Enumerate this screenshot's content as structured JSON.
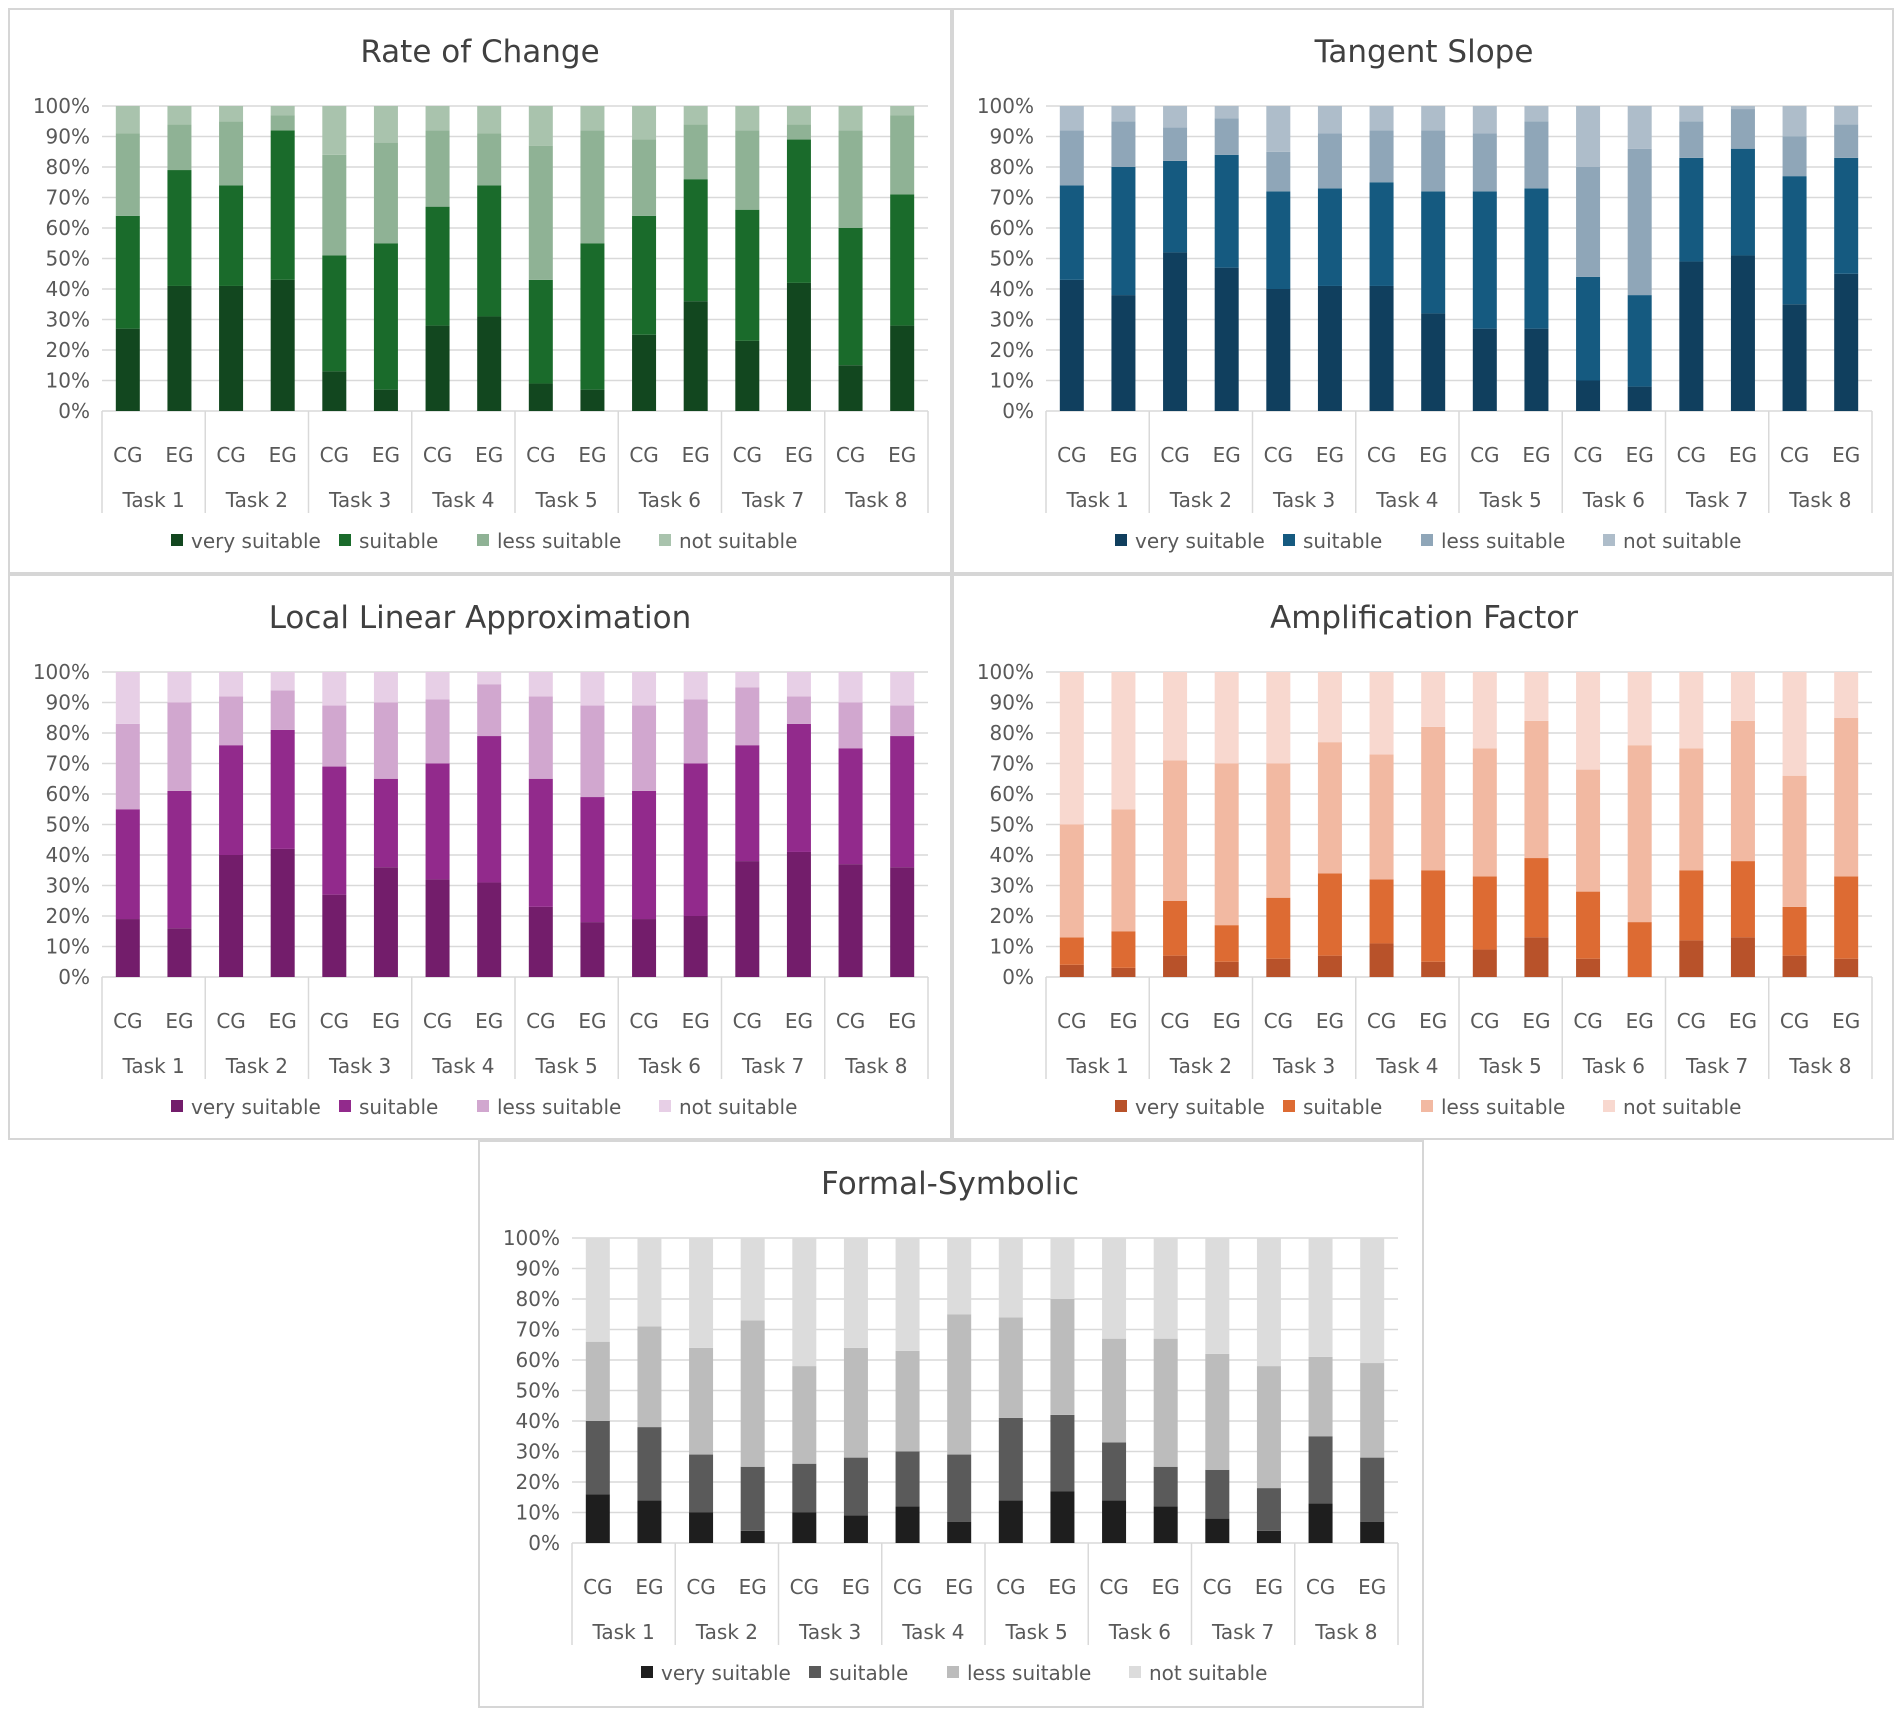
{
  "common": {
    "groups": [
      "CG",
      "EG"
    ],
    "tasks": [
      "Task 1",
      "Task 2",
      "Task 3",
      "Task 4",
      "Task 5",
      "Task 6",
      "Task 7",
      "Task 8"
    ],
    "legend": [
      "very suitable",
      "suitable",
      "less suitable",
      "not suitable"
    ],
    "y_ticks": [
      "0%",
      "10%",
      "20%",
      "30%",
      "40%",
      "50%",
      "60%",
      "70%",
      "80%",
      "90%",
      "100%"
    ]
  },
  "chart_data": [
    {
      "type": "bar",
      "stacked": true,
      "title": "Rate of Change",
      "colors": [
        "#12471f",
        "#1a6b2b",
        "#8fb295",
        "#a9c3ad"
      ],
      "categories": [
        "Task 1 CG",
        "Task 1 EG",
        "Task 2 CG",
        "Task 2 EG",
        "Task 3 CG",
        "Task 3 EG",
        "Task 4 CG",
        "Task 4 EG",
        "Task 5 CG",
        "Task 5 EG",
        "Task 6 CG",
        "Task 6 EG",
        "Task 7 CG",
        "Task 7 EG",
        "Task 8 CG",
        "Task 8 EG"
      ],
      "series": [
        {
          "name": "very suitable",
          "values": [
            27,
            41,
            41,
            43,
            13,
            7,
            28,
            31,
            9,
            7,
            25,
            36,
            23,
            42,
            15,
            28
          ]
        },
        {
          "name": "suitable",
          "values": [
            37,
            38,
            33,
            49,
            38,
            48,
            39,
            43,
            34,
            48,
            39,
            40,
            43,
            47,
            45,
            43
          ]
        },
        {
          "name": "less suitable",
          "values": [
            27,
            15,
            21,
            5,
            33,
            33,
            25,
            17,
            44,
            37,
            25,
            18,
            26,
            5,
            32,
            26
          ]
        },
        {
          "name": "not suitable",
          "values": [
            9,
            6,
            5,
            3,
            16,
            12,
            8,
            9,
            13,
            8,
            11,
            6,
            8,
            6,
            8,
            3
          ]
        }
      ],
      "ylim": [
        0,
        100
      ],
      "legend_position": "bottom"
    },
    {
      "type": "bar",
      "stacked": true,
      "title": "Tangent Slope",
      "colors": [
        "#103f5e",
        "#155a80",
        "#8fa6b8",
        "#aebdca"
      ],
      "categories": [
        "Task 1 CG",
        "Task 1 EG",
        "Task 2 CG",
        "Task 2 EG",
        "Task 3 CG",
        "Task 3 EG",
        "Task 4 CG",
        "Task 4 EG",
        "Task 5 CG",
        "Task 5 EG",
        "Task 6 CG",
        "Task 6 EG",
        "Task 7 CG",
        "Task 7 EG",
        "Task 8 CG",
        "Task 8 EG"
      ],
      "series": [
        {
          "name": "very suitable",
          "values": [
            43,
            38,
            52,
            47,
            40,
            41,
            41,
            32,
            27,
            27,
            10,
            8,
            49,
            51,
            35,
            45
          ]
        },
        {
          "name": "suitable",
          "values": [
            31,
            42,
            30,
            37,
            32,
            32,
            34,
            40,
            45,
            46,
            34,
            30,
            34,
            35,
            42,
            38
          ]
        },
        {
          "name": "less suitable",
          "values": [
            18,
            15,
            11,
            12,
            13,
            18,
            17,
            20,
            19,
            22,
            36,
            48,
            12,
            13,
            13,
            11
          ]
        },
        {
          "name": "not suitable",
          "values": [
            8,
            5,
            7,
            4,
            15,
            9,
            8,
            8,
            9,
            5,
            20,
            14,
            5,
            1,
            10,
            6
          ]
        }
      ],
      "ylim": [
        0,
        100
      ],
      "legend_position": "bottom"
    },
    {
      "type": "bar",
      "stacked": true,
      "title": "Local Linear Approximation",
      "colors": [
        "#731d6b",
        "#922a8c",
        "#d1a7cf",
        "#e7cfe6"
      ],
      "categories": [
        "Task 1 CG",
        "Task 1 EG",
        "Task 2 CG",
        "Task 2 EG",
        "Task 3 CG",
        "Task 3 EG",
        "Task 4 CG",
        "Task 4 EG",
        "Task 5 CG",
        "Task 5 EG",
        "Task 6 CG",
        "Task 6 EG",
        "Task 7 CG",
        "Task 7 EG",
        "Task 8 CG",
        "Task 8 EG"
      ],
      "series": [
        {
          "name": "very suitable",
          "values": [
            19,
            16,
            40,
            42,
            27,
            36,
            32,
            31,
            23,
            18,
            19,
            20,
            38,
            41,
            37,
            36
          ]
        },
        {
          "name": "suitable",
          "values": [
            36,
            45,
            36,
            39,
            42,
            29,
            38,
            48,
            42,
            41,
            42,
            50,
            38,
            42,
            38,
            43
          ]
        },
        {
          "name": "less suitable",
          "values": [
            28,
            29,
            16,
            13,
            20,
            25,
            21,
            17,
            27,
            30,
            28,
            21,
            19,
            9,
            15,
            10
          ]
        },
        {
          "name": "not suitable",
          "values": [
            17,
            10,
            8,
            6,
            11,
            10,
            9,
            4,
            8,
            11,
            11,
            9,
            5,
            8,
            10,
            11
          ]
        }
      ],
      "ylim": [
        0,
        100
      ],
      "legend_position": "bottom"
    },
    {
      "type": "bar",
      "stacked": true,
      "title": "Amplification Factor",
      "colors": [
        "#b8522a",
        "#dd6b33",
        "#f2b9a2",
        "#f8d8cf"
      ],
      "categories": [
        "Task 1 CG",
        "Task 1 EG",
        "Task 2 CG",
        "Task 2 EG",
        "Task 3 CG",
        "Task 3 EG",
        "Task 4 CG",
        "Task 4 EG",
        "Task 5 CG",
        "Task 5 EG",
        "Task 6 CG",
        "Task 6 EG",
        "Task 7 CG",
        "Task 7 EG",
        "Task 8 CG",
        "Task 8 EG"
      ],
      "series": [
        {
          "name": "very suitable",
          "values": [
            4,
            3,
            7,
            5,
            6,
            7,
            11,
            5,
            9,
            13,
            6,
            0,
            12,
            13,
            7,
            6
          ]
        },
        {
          "name": "suitable",
          "values": [
            9,
            12,
            18,
            12,
            20,
            27,
            21,
            30,
            24,
            26,
            22,
            18,
            23,
            25,
            16,
            27
          ]
        },
        {
          "name": "less suitable",
          "values": [
            37,
            40,
            46,
            53,
            44,
            43,
            41,
            47,
            42,
            45,
            40,
            58,
            40,
            46,
            43,
            52
          ]
        },
        {
          "name": "not suitable",
          "values": [
            50,
            45,
            29,
            30,
            30,
            23,
            27,
            18,
            25,
            16,
            32,
            24,
            25,
            16,
            34,
            15
          ]
        }
      ],
      "ylim": [
        0,
        100
      ],
      "legend_position": "bottom"
    },
    {
      "type": "bar",
      "stacked": true,
      "title": "Formal-Symbolic",
      "colors": [
        "#1e1e1e",
        "#5a5a5a",
        "#bcbcbc",
        "#dcdcdc"
      ],
      "categories": [
        "Task 1 CG",
        "Task 1 EG",
        "Task 2 CG",
        "Task 2 EG",
        "Task 3 CG",
        "Task 3 EG",
        "Task 4 CG",
        "Task 4 EG",
        "Task 5 CG",
        "Task 5 EG",
        "Task 6 CG",
        "Task 6 EG",
        "Task 7 CG",
        "Task 7 EG",
        "Task 8 CG",
        "Task 8 EG"
      ],
      "series": [
        {
          "name": "very suitable",
          "values": [
            16,
            14,
            10,
            4,
            10,
            9,
            12,
            7,
            14,
            17,
            14,
            12,
            8,
            4,
            13,
            7
          ]
        },
        {
          "name": "suitable",
          "values": [
            24,
            24,
            19,
            21,
            16,
            19,
            18,
            22,
            27,
            25,
            19,
            13,
            16,
            14,
            22,
            21
          ]
        },
        {
          "name": "less suitable",
          "values": [
            26,
            33,
            35,
            48,
            32,
            36,
            33,
            46,
            33,
            38,
            34,
            42,
            38,
            40,
            26,
            31
          ]
        },
        {
          "name": "not suitable",
          "values": [
            34,
            29,
            36,
            27,
            42,
            36,
            37,
            25,
            26,
            20,
            33,
            33,
            38,
            42,
            39,
            41
          ]
        }
      ],
      "ylim": [
        0,
        100
      ],
      "legend_position": "bottom"
    }
  ]
}
